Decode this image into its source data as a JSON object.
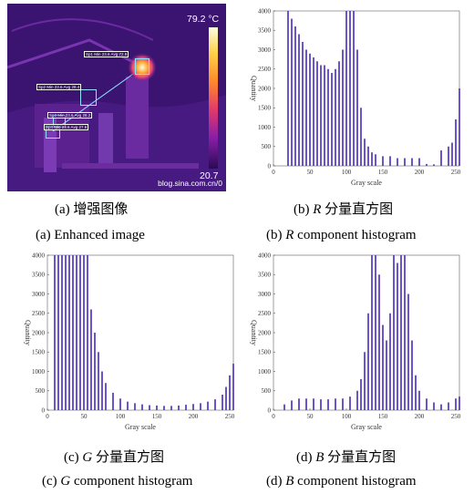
{
  "panel_a": {
    "max_temp": "79.2 °C",
    "min_temp": "20.7",
    "watermark": "blog.sina.com.cn/0",
    "box_labels": [
      "Sp1 Min 23.6 Avg 72.8",
      "Sp2 Min 23.6 Avg 28.4",
      "Sp3 Min 23.6 Avg 28.2",
      "Sp4 Min 23.6 Avg 27.6"
    ],
    "caption_cn": "(a)  增强图像",
    "caption_en": "(a) Enhanced image"
  },
  "panel_b": {
    "caption_cn_prefix": "(b) ",
    "caption_cn_var": "R",
    "caption_cn_suffix": " 分量直方图",
    "caption_en_prefix": "(b) ",
    "caption_en_var": "R",
    "caption_en_suffix": " component histogram"
  },
  "panel_c": {
    "caption_cn_prefix": "(c) ",
    "caption_cn_var": "G",
    "caption_cn_suffix": " 分量直方图",
    "caption_en_prefix": "(c) ",
    "caption_en_var": "G",
    "caption_en_suffix": " component histogram"
  },
  "panel_d": {
    "caption_cn_prefix": "(d) ",
    "caption_cn_var": "B",
    "caption_cn_suffix": " 分量直方图",
    "caption_en_prefix": "(d) ",
    "caption_en_var": "B",
    "caption_en_suffix": " component histogram"
  },
  "colors": {
    "bar": "#5a3ec8",
    "frame": "#888888"
  },
  "chart_data": [
    {
      "id": "R",
      "type": "bar",
      "xlabel": "Gray scale",
      "ylabel": "Quantity",
      "xlim": [
        0,
        255
      ],
      "ylim": [
        0,
        4000
      ],
      "xticks": [
        0,
        50,
        100,
        150,
        200,
        250
      ],
      "yticks": [
        0,
        500,
        1000,
        1500,
        2000,
        2500,
        3000,
        3500,
        4000
      ],
      "x": [
        20,
        25,
        30,
        35,
        40,
        45,
        50,
        55,
        60,
        65,
        70,
        75,
        80,
        85,
        90,
        95,
        100,
        105,
        110,
        115,
        120,
        125,
        130,
        135,
        140,
        150,
        160,
        170,
        180,
        190,
        200,
        210,
        220,
        230,
        240,
        245,
        250,
        255
      ],
      "values": [
        4000,
        3800,
        3600,
        3400,
        3200,
        3000,
        2900,
        2800,
        2700,
        2600,
        2600,
        2500,
        2400,
        2500,
        2700,
        3000,
        4000,
        4000,
        4000,
        3000,
        1500,
        700,
        500,
        350,
        300,
        250,
        250,
        200,
        200,
        200,
        200,
        50,
        40,
        400,
        500,
        600,
        1200,
        2000
      ]
    },
    {
      "id": "G",
      "type": "bar",
      "xlabel": "Gray scale",
      "ylabel": "Quantity",
      "xlim": [
        0,
        255
      ],
      "ylim": [
        0,
        4000
      ],
      "xticks": [
        0,
        50,
        100,
        150,
        200,
        250
      ],
      "yticks": [
        0,
        500,
        1000,
        1500,
        2000,
        2500,
        3000,
        3500,
        4000
      ],
      "x": [
        10,
        15,
        20,
        25,
        30,
        35,
        40,
        45,
        50,
        55,
        60,
        65,
        70,
        75,
        80,
        90,
        100,
        110,
        120,
        130,
        140,
        150,
        160,
        170,
        180,
        190,
        200,
        210,
        220,
        230,
        240,
        245,
        250,
        255
      ],
      "values": [
        4000,
        4000,
        4000,
        4000,
        4000,
        4000,
        4000,
        4000,
        4000,
        4000,
        2600,
        2000,
        1500,
        1000,
        700,
        450,
        300,
        220,
        180,
        150,
        130,
        120,
        110,
        110,
        120,
        140,
        160,
        180,
        220,
        280,
        400,
        600,
        900,
        1200
      ]
    },
    {
      "id": "B",
      "type": "bar",
      "xlabel": "Gray scale",
      "ylabel": "Quantity",
      "xlim": [
        0,
        255
      ],
      "ylim": [
        0,
        4000
      ],
      "xticks": [
        0,
        50,
        100,
        150,
        200,
        250
      ],
      "yticks": [
        0,
        500,
        1000,
        1500,
        2000,
        2500,
        3000,
        3500,
        4000
      ],
      "x": [
        15,
        25,
        35,
        45,
        55,
        65,
        75,
        85,
        95,
        105,
        115,
        120,
        125,
        130,
        135,
        140,
        145,
        150,
        155,
        160,
        165,
        170,
        175,
        180,
        185,
        190,
        195,
        200,
        210,
        220,
        230,
        240,
        250,
        255
      ],
      "values": [
        150,
        250,
        300,
        300,
        300,
        280,
        280,
        300,
        300,
        350,
        500,
        800,
        1500,
        2500,
        4000,
        4000,
        3500,
        2200,
        1800,
        2500,
        4000,
        3800,
        4000,
        4000,
        3000,
        1800,
        900,
        500,
        300,
        200,
        150,
        200,
        300,
        350
      ]
    }
  ]
}
